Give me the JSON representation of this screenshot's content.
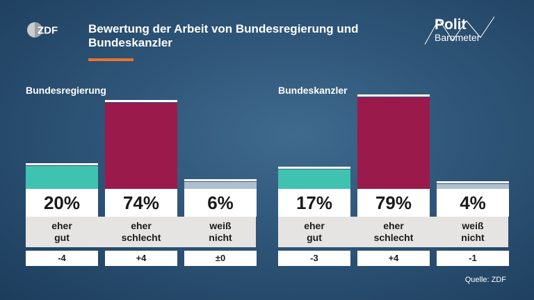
{
  "header": {
    "title": "Bewertung der Arbeit von Bundesregierung und Bundeskanzler",
    "logo_text": "ZDF",
    "brand_line1": "Polit",
    "brand_line2": "Barometer"
  },
  "colors": {
    "positive": "#3fc3b0",
    "negative": "#9b1a4c",
    "neutral": "#aebfd2",
    "accent": "#e8742a"
  },
  "chart_data": [
    {
      "type": "bar",
      "title": "Bundesregierung",
      "categories": [
        "eher\ngut",
        "eher\nschlecht",
        "weiß\nnicht"
      ],
      "values": [
        20,
        74,
        6
      ],
      "value_labels": [
        "20%",
        "74%",
        "6%"
      ],
      "changes": [
        "-4",
        "+4",
        "±0"
      ],
      "colors": [
        "#3fc3b0",
        "#9b1a4c",
        "#aebfd2"
      ],
      "ylim": [
        0,
        100
      ]
    },
    {
      "type": "bar",
      "title": "Bundeskanzler",
      "categories": [
        "eher\ngut",
        "eher\nschlecht",
        "weiß\nnicht"
      ],
      "values": [
        17,
        79,
        4
      ],
      "value_labels": [
        "17%",
        "79%",
        "4%"
      ],
      "changes": [
        "-3",
        "+4",
        "-1"
      ],
      "colors": [
        "#3fc3b0",
        "#9b1a4c",
        "#aebfd2"
      ],
      "ylim": [
        0,
        100
      ]
    }
  ],
  "footer": {
    "source": "Quelle: ZDF"
  }
}
